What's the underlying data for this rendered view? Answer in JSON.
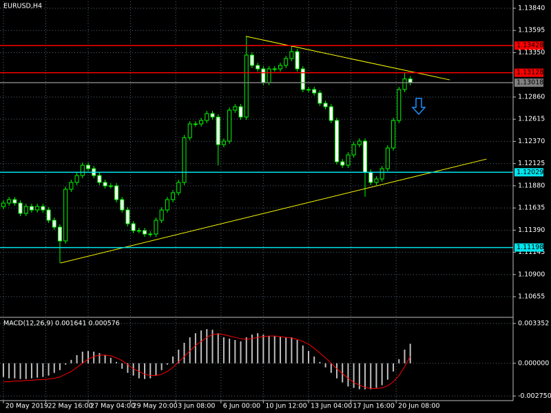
{
  "chart_data": [
    {
      "type": "candlestick",
      "title": "EURUSD,H4",
      "color": "#00ff00",
      "grid": true,
      "xlim": [
        -0.6,
        90.2
      ],
      "xticks": [
        {
          "value": 0,
          "label": "20 May 2019"
        },
        {
          "value": 7.5,
          "label": "22 May 16:00"
        },
        {
          "value": 15,
          "label": "27 May 04:00"
        },
        {
          "value": 22.5,
          "label": "29 May 20:00"
        },
        {
          "value": 30.5,
          "label": "3 Jun 08:00"
        },
        {
          "value": 38.5,
          "label": "6 Jun 00:00"
        },
        {
          "value": 46,
          "label": "10 Jun 12:00"
        },
        {
          "value": 54,
          "label": "13 Jun 04:00"
        },
        {
          "value": 61.5,
          "label": "17 Jun 16:00"
        },
        {
          "value": 69.5,
          "label": "20 Jun 08:00"
        }
      ],
      "ylim": [
        1.10435,
        1.13916
      ],
      "yticks": [
        {
          "value": 1.1384,
          "label": "1.13840"
        },
        1.13595,
        {
          "value": 1.1335,
          "label": "1.13350"
        },
        {
          "value": 1.1286,
          "label": "1.12860"
        },
        1.12615,
        {
          "value": 1.1237,
          "label": "1.12370"
        },
        1.12125,
        {
          "value": 1.1188,
          "label": "1.11880"
        },
        1.11635,
        {
          "value": 1.1139,
          "label": "1.11390"
        },
        1.11145,
        {
          "value": 1.109,
          "label": "1.10900"
        },
        1.10655
      ],
      "open": [
        1.1165,
        1.11689,
        1.11727,
        1.11689,
        1.11575,
        1.11651,
        1.11613,
        1.11651,
        1.11613,
        1.11499,
        1.11423,
        1.11271,
        1.11841,
        1.11917,
        1.11993,
        1.12107,
        1.12069,
        1.11993,
        1.11917,
        1.11879,
        1.11879,
        1.11727,
        1.11613,
        1.11461,
        1.11385,
        1.11385,
        1.11347,
        1.11347,
        1.11499,
        1.11613,
        1.11727,
        1.11803,
        1.11917,
        1.12411,
        1.12563,
        1.12563,
        1.12601,
        1.12677,
        1.12639,
        1.12335,
        1.12373,
        1.12715,
        1.12753,
        1.12639,
        1.13323,
        1.13209,
        1.13171,
        1.13019,
        1.13171,
        1.13171,
        1.13209,
        1.13285,
        1.13361,
        1.13171,
        1.12943,
        1.12943,
        1.12905,
        1.12791,
        1.12753,
        1.12601,
        1.12145,
        1.12107,
        1.12221,
        1.12335,
        1.12373,
        1.12031,
        1.11917,
        1.11955,
        1.12069,
        1.12297,
        1.12601,
        1.12943,
        1.1306
      ],
      "high": [
        1.11719,
        1.11757,
        1.11757,
        1.11719,
        1.11681,
        1.11681,
        1.11681,
        1.11681,
        1.11643,
        1.11529,
        1.11453,
        1.11871,
        1.11947,
        1.12023,
        1.12137,
        1.12137,
        1.12099,
        1.12023,
        1.11947,
        1.11909,
        1.11909,
        1.11757,
        1.11643,
        1.11491,
        1.11415,
        1.11415,
        1.11377,
        1.11529,
        1.11643,
        1.11757,
        1.11833,
        1.11947,
        1.12441,
        1.12593,
        1.12593,
        1.12631,
        1.12707,
        1.12707,
        1.12669,
        1.12403,
        1.12745,
        1.12783,
        1.12783,
        1.1353,
        1.13353,
        1.13239,
        1.13201,
        1.13201,
        1.13201,
        1.13239,
        1.13315,
        1.13428,
        1.13391,
        1.13201,
        1.12973,
        1.12973,
        1.12935,
        1.12821,
        1.12783,
        1.12631,
        1.12175,
        1.12251,
        1.12365,
        1.12403,
        1.12403,
        1.12061,
        1.11985,
        1.12099,
        1.12327,
        1.12631,
        1.12973,
        1.13128,
        1.1309
      ],
      "low": [
        1.1162,
        1.11659,
        1.11659,
        1.11545,
        1.11545,
        1.11583,
        1.11583,
        1.11583,
        1.11469,
        1.11393,
        1.11027,
        1.11241,
        1.11811,
        1.11887,
        1.11963,
        1.12039,
        1.11963,
        1.11887,
        1.11849,
        1.11849,
        1.11697,
        1.11583,
        1.11431,
        1.11355,
        1.11355,
        1.11317,
        1.11317,
        1.11317,
        1.11469,
        1.11583,
        1.11697,
        1.11773,
        1.11887,
        1.12381,
        1.12533,
        1.12533,
        1.12571,
        1.12609,
        1.12105,
        1.12305,
        1.12343,
        1.12685,
        1.12609,
        1.12609,
        1.13179,
        1.13141,
        1.12989,
        1.12989,
        1.13141,
        1.13141,
        1.13179,
        1.13255,
        1.13141,
        1.12913,
        1.12913,
        1.12875,
        1.12761,
        1.12723,
        1.12571,
        1.12115,
        1.12077,
        1.12077,
        1.12191,
        1.12305,
        1.1176,
        1.11887,
        1.11887,
        1.11925,
        1.12039,
        1.12267,
        1.12571,
        1.12913,
        1.12988
      ],
      "close": [
        1.11689,
        1.11727,
        1.11689,
        1.11575,
        1.11651,
        1.11613,
        1.11651,
        1.11613,
        1.11499,
        1.11423,
        1.11271,
        1.11841,
        1.11917,
        1.11993,
        1.12107,
        1.12069,
        1.11993,
        1.11917,
        1.11879,
        1.11879,
        1.11727,
        1.11613,
        1.11461,
        1.11385,
        1.11385,
        1.11347,
        1.11347,
        1.11499,
        1.11613,
        1.11727,
        1.11803,
        1.11917,
        1.12411,
        1.12563,
        1.12563,
        1.12601,
        1.12677,
        1.12639,
        1.12335,
        1.12373,
        1.12715,
        1.12753,
        1.12639,
        1.13323,
        1.13209,
        1.13171,
        1.13019,
        1.13171,
        1.13171,
        1.13209,
        1.13285,
        1.13361,
        1.13171,
        1.12943,
        1.12943,
        1.12905,
        1.12791,
        1.12753,
        1.12601,
        1.12145,
        1.12107,
        1.12221,
        1.12335,
        1.12373,
        1.12031,
        1.11917,
        1.11955,
        1.12069,
        1.12297,
        1.12601,
        1.12943,
        1.1306,
        1.13018
      ],
      "levels": [
        {
          "value": 1.13428,
          "color": "#ff0000"
        },
        {
          "value": 1.13128,
          "color": "#ff0000"
        },
        {
          "value": 1.13018,
          "color": "#808080"
        },
        {
          "value": 1.12029,
          "color": "#00e5ee"
        },
        {
          "value": 1.11198,
          "color": "#00e5ee"
        }
      ],
      "trendlines": [
        {
          "x": [
            10.1,
            85.5
          ],
          "y": [
            1.11027,
            1.12175
          ],
          "color": "#ffff00"
        },
        {
          "x": [
            42.9,
            79
          ],
          "y": [
            1.1353,
            1.13049
          ],
          "color": "#ffff00"
        }
      ]
    },
    {
      "type": "macd",
      "title": "MACD(12,26,9) 0.001641 0.000576",
      "grid": true,
      "ylim": [
        -0.00314,
        0.003695
      ],
      "yticks": [
        {
          "value": 0.003352,
          "label": "0.003352"
        },
        {
          "value": 0,
          "label": "0.000000"
        },
        {
          "value": -0.00275,
          "label": "-0.002750"
        }
      ],
      "histogram": {
        "color": "#c0c0c0",
        "values": [
          -0.00115,
          -0.001265,
          -0.001265,
          -0.001323,
          -0.001323,
          -0.001265,
          -0.001208,
          -0.00115,
          -0.001035,
          -0.000805,
          -0.000575,
          -0.000115,
          0.000288,
          0.00069,
          0.000978,
          0.001035,
          0.000978,
          0.000863,
          0.00069,
          0.00046,
          0.000115,
          -0.00046,
          -0.000805,
          -0.001035,
          -0.001265,
          -0.001323,
          -0.001265,
          -0.001035,
          -0.000575,
          -0.000115,
          0.000575,
          0.00115,
          0.001725,
          0.002185,
          0.00253,
          0.00276,
          0.002875,
          0.002818,
          0.00253,
          0.002185,
          0.00207,
          0.001955,
          0.00184,
          0.002185,
          0.002415,
          0.00253,
          0.002415,
          0.0023,
          0.0023,
          0.002243,
          0.002185,
          0.002185,
          0.001955,
          0.001495,
          0.001035,
          0.000575,
          0.000115,
          -0.000345,
          -0.000805,
          -0.001265,
          -0.00161,
          -0.001955,
          -0.00207,
          -0.002185,
          -0.002185,
          -0.002185,
          -0.00207,
          -0.00184,
          -0.00138,
          -0.00069,
          0.000345,
          0.00115,
          0.001641
        ]
      },
      "signal": {
        "color": "#ff0000",
        "values": [
          -0.001553,
          -0.001553,
          -0.001495,
          -0.001495,
          -0.001438,
          -0.001438,
          -0.00138,
          -0.00138,
          -0.001323,
          -0.001265,
          -0.00115,
          -0.00092,
          -0.00069,
          -0.000345,
          0,
          0.000345,
          0.000575,
          0.00069,
          0.00069,
          0.000633,
          0.00046,
          0.00023,
          -0.000115,
          -0.00046,
          -0.00069,
          -0.00092,
          -0.001035,
          -0.001035,
          -0.00092,
          -0.00069,
          -0.000345,
          0.000115,
          0.000575,
          0.001035,
          0.001495,
          0.00184,
          0.002185,
          0.002415,
          0.002473,
          0.002415,
          0.0023,
          0.002185,
          0.00207,
          0.002013,
          0.00207,
          0.002185,
          0.002243,
          0.0023,
          0.0023,
          0.002243,
          0.002185,
          0.002128,
          0.002013,
          0.00184,
          0.00161,
          0.001265,
          0.000863,
          0.00046,
          0,
          -0.00046,
          -0.000863,
          -0.001265,
          -0.00161,
          -0.00184,
          -0.002013,
          -0.002128,
          -0.002128,
          -0.00207,
          -0.001898,
          -0.001553,
          -0.001035,
          -0.000288,
          0.000576
        ]
      }
    }
  ]
}
